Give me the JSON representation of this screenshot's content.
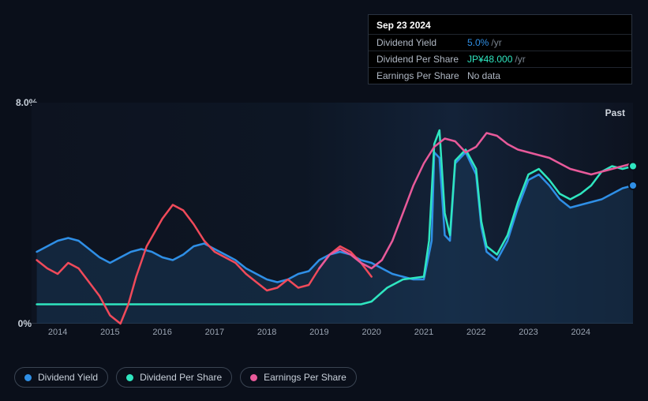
{
  "chart": {
    "type": "line",
    "background_gradient": [
      "#0d1320",
      "#0d1624",
      "#132238",
      "#0d1320"
    ],
    "grid_color": "#2a3340",
    "text_color": "#c8d0da",
    "tick_color": "#9aa4b2",
    "past_label": "Past",
    "y_axis": {
      "min": 0,
      "max": 8,
      "ticks": [
        {
          "v": 0,
          "label": "0%"
        },
        {
          "v": 8,
          "label": "8.0%"
        }
      ]
    },
    "x_axis": {
      "min": 2013.5,
      "max": 2025.0,
      "ticks": [
        2014,
        2015,
        2016,
        2017,
        2018,
        2019,
        2020,
        2021,
        2022,
        2023,
        2024
      ]
    },
    "area_fill": {
      "series": "dividend_yield",
      "color": "#1a3a5a",
      "opacity": 0.5
    },
    "end_dots": [
      {
        "series": "dividend_yield",
        "color": "#2f8fe6"
      },
      {
        "series": "dividend_per_share",
        "color": "#2fe6c0"
      }
    ],
    "series": {
      "dividend_yield": {
        "label": "Dividend Yield",
        "color": "#2f8fe6",
        "line_width": 2.5,
        "points": [
          [
            2013.6,
            2.6
          ],
          [
            2013.8,
            2.8
          ],
          [
            2014.0,
            3.0
          ],
          [
            2014.2,
            3.1
          ],
          [
            2014.4,
            3.0
          ],
          [
            2014.6,
            2.7
          ],
          [
            2014.8,
            2.4
          ],
          [
            2015.0,
            2.2
          ],
          [
            2015.2,
            2.4
          ],
          [
            2015.4,
            2.6
          ],
          [
            2015.6,
            2.7
          ],
          [
            2015.8,
            2.6
          ],
          [
            2016.0,
            2.4
          ],
          [
            2016.2,
            2.3
          ],
          [
            2016.4,
            2.5
          ],
          [
            2016.6,
            2.8
          ],
          [
            2016.8,
            2.9
          ],
          [
            2017.0,
            2.7
          ],
          [
            2017.2,
            2.5
          ],
          [
            2017.4,
            2.3
          ],
          [
            2017.6,
            2.0
          ],
          [
            2017.8,
            1.8
          ],
          [
            2018.0,
            1.6
          ],
          [
            2018.2,
            1.5
          ],
          [
            2018.4,
            1.6
          ],
          [
            2018.6,
            1.8
          ],
          [
            2018.8,
            1.9
          ],
          [
            2019.0,
            2.3
          ],
          [
            2019.2,
            2.5
          ],
          [
            2019.4,
            2.6
          ],
          [
            2019.6,
            2.5
          ],
          [
            2019.8,
            2.3
          ],
          [
            2020.0,
            2.2
          ],
          [
            2020.2,
            2.0
          ],
          [
            2020.4,
            1.8
          ],
          [
            2020.6,
            1.7
          ],
          [
            2020.8,
            1.6
          ],
          [
            2021.0,
            1.6
          ],
          [
            2021.15,
            3.0
          ],
          [
            2021.2,
            6.2
          ],
          [
            2021.3,
            6.0
          ],
          [
            2021.4,
            3.2
          ],
          [
            2021.5,
            3.0
          ],
          [
            2021.6,
            5.8
          ],
          [
            2021.8,
            6.2
          ],
          [
            2022.0,
            5.4
          ],
          [
            2022.1,
            3.5
          ],
          [
            2022.2,
            2.6
          ],
          [
            2022.4,
            2.3
          ],
          [
            2022.6,
            3.0
          ],
          [
            2022.8,
            4.2
          ],
          [
            2023.0,
            5.2
          ],
          [
            2023.2,
            5.4
          ],
          [
            2023.4,
            5.0
          ],
          [
            2023.6,
            4.5
          ],
          [
            2023.8,
            4.2
          ],
          [
            2024.0,
            4.3
          ],
          [
            2024.2,
            4.4
          ],
          [
            2024.4,
            4.5
          ],
          [
            2024.6,
            4.7
          ],
          [
            2024.8,
            4.9
          ],
          [
            2025.0,
            5.0
          ]
        ]
      },
      "dividend_per_share": {
        "label": "Dividend Per Share",
        "color": "#2fe6c0",
        "line_width": 2.5,
        "points": [
          [
            2013.6,
            0.7
          ],
          [
            2014.0,
            0.7
          ],
          [
            2015.0,
            0.7
          ],
          [
            2016.0,
            0.7
          ],
          [
            2017.0,
            0.7
          ],
          [
            2018.0,
            0.7
          ],
          [
            2019.0,
            0.7
          ],
          [
            2019.8,
            0.7
          ],
          [
            2020.0,
            0.8
          ],
          [
            2020.3,
            1.3
          ],
          [
            2020.6,
            1.6
          ],
          [
            2021.0,
            1.7
          ],
          [
            2021.1,
            3.0
          ],
          [
            2021.2,
            6.5
          ],
          [
            2021.3,
            7.0
          ],
          [
            2021.4,
            4.0
          ],
          [
            2021.5,
            3.2
          ],
          [
            2021.6,
            5.9
          ],
          [
            2021.8,
            6.3
          ],
          [
            2022.0,
            5.6
          ],
          [
            2022.1,
            3.7
          ],
          [
            2022.2,
            2.8
          ],
          [
            2022.4,
            2.5
          ],
          [
            2022.6,
            3.2
          ],
          [
            2022.8,
            4.4
          ],
          [
            2023.0,
            5.4
          ],
          [
            2023.2,
            5.6
          ],
          [
            2023.4,
            5.2
          ],
          [
            2023.6,
            4.7
          ],
          [
            2023.8,
            4.5
          ],
          [
            2024.0,
            4.7
          ],
          [
            2024.2,
            5.0
          ],
          [
            2024.4,
            5.5
          ],
          [
            2024.6,
            5.7
          ],
          [
            2024.8,
            5.6
          ],
          [
            2025.0,
            5.7
          ]
        ]
      },
      "earnings_per_share_red": {
        "label": "Earnings Per Share",
        "color": "#f04a5a",
        "line_width": 2.5,
        "points": [
          [
            2013.6,
            2.3
          ],
          [
            2013.8,
            2.0
          ],
          [
            2014.0,
            1.8
          ],
          [
            2014.2,
            2.2
          ],
          [
            2014.4,
            2.0
          ],
          [
            2014.6,
            1.5
          ],
          [
            2014.8,
            1.0
          ],
          [
            2015.0,
            0.3
          ],
          [
            2015.2,
            0.0
          ],
          [
            2015.35,
            0.7
          ],
          [
            2015.5,
            1.7
          ],
          [
            2015.7,
            2.8
          ],
          [
            2016.0,
            3.8
          ],
          [
            2016.2,
            4.3
          ],
          [
            2016.4,
            4.1
          ],
          [
            2016.6,
            3.6
          ],
          [
            2016.8,
            3.0
          ],
          [
            2017.0,
            2.6
          ],
          [
            2017.2,
            2.4
          ],
          [
            2017.4,
            2.2
          ],
          [
            2017.6,
            1.8
          ],
          [
            2017.8,
            1.5
          ],
          [
            2018.0,
            1.2
          ],
          [
            2018.2,
            1.3
          ],
          [
            2018.4,
            1.6
          ],
          [
            2018.6,
            1.3
          ],
          [
            2018.8,
            1.4
          ],
          [
            2019.0,
            2.0
          ],
          [
            2019.2,
            2.5
          ],
          [
            2019.4,
            2.8
          ],
          [
            2019.6,
            2.6
          ],
          [
            2019.8,
            2.2
          ],
          [
            2020.0,
            1.7
          ]
        ]
      },
      "earnings_per_share_pink": {
        "label": "Earnings Per Share",
        "color": "#e85a9a",
        "line_width": 2.5,
        "points": [
          [
            2019.0,
            2.0
          ],
          [
            2019.2,
            2.5
          ],
          [
            2019.4,
            2.7
          ],
          [
            2019.6,
            2.5
          ],
          [
            2019.8,
            2.2
          ],
          [
            2020.0,
            2.0
          ],
          [
            2020.2,
            2.3
          ],
          [
            2020.4,
            3.0
          ],
          [
            2020.6,
            4.0
          ],
          [
            2020.8,
            5.0
          ],
          [
            2021.0,
            5.8
          ],
          [
            2021.2,
            6.4
          ],
          [
            2021.4,
            6.7
          ],
          [
            2021.6,
            6.6
          ],
          [
            2021.8,
            6.2
          ],
          [
            2022.0,
            6.4
          ],
          [
            2022.2,
            6.9
          ],
          [
            2022.4,
            6.8
          ],
          [
            2022.6,
            6.5
          ],
          [
            2022.8,
            6.3
          ],
          [
            2023.0,
            6.2
          ],
          [
            2023.2,
            6.1
          ],
          [
            2023.4,
            6.0
          ],
          [
            2023.6,
            5.8
          ],
          [
            2023.8,
            5.6
          ],
          [
            2024.0,
            5.5
          ],
          [
            2024.2,
            5.4
          ],
          [
            2024.4,
            5.5
          ],
          [
            2024.6,
            5.6
          ],
          [
            2024.8,
            5.7
          ],
          [
            2025.0,
            5.8
          ]
        ]
      }
    }
  },
  "tooltip": {
    "date": "Sep 23 2024",
    "rows": [
      {
        "key": "Dividend Yield",
        "value": "5.0%",
        "suffix": "/yr",
        "value_class": "v-blue"
      },
      {
        "key": "Dividend Per Share",
        "value": "JP¥48.000",
        "suffix": "/yr",
        "value_class": "v-teal"
      },
      {
        "key": "Earnings Per Share",
        "value": "No data",
        "suffix": "",
        "value_class": "v"
      }
    ]
  },
  "legend": [
    {
      "label": "Dividend Yield",
      "color": "#2f8fe6"
    },
    {
      "label": "Dividend Per Share",
      "color": "#2fe6c0"
    },
    {
      "label": "Earnings Per Share",
      "color": "#e85a9a"
    }
  ]
}
